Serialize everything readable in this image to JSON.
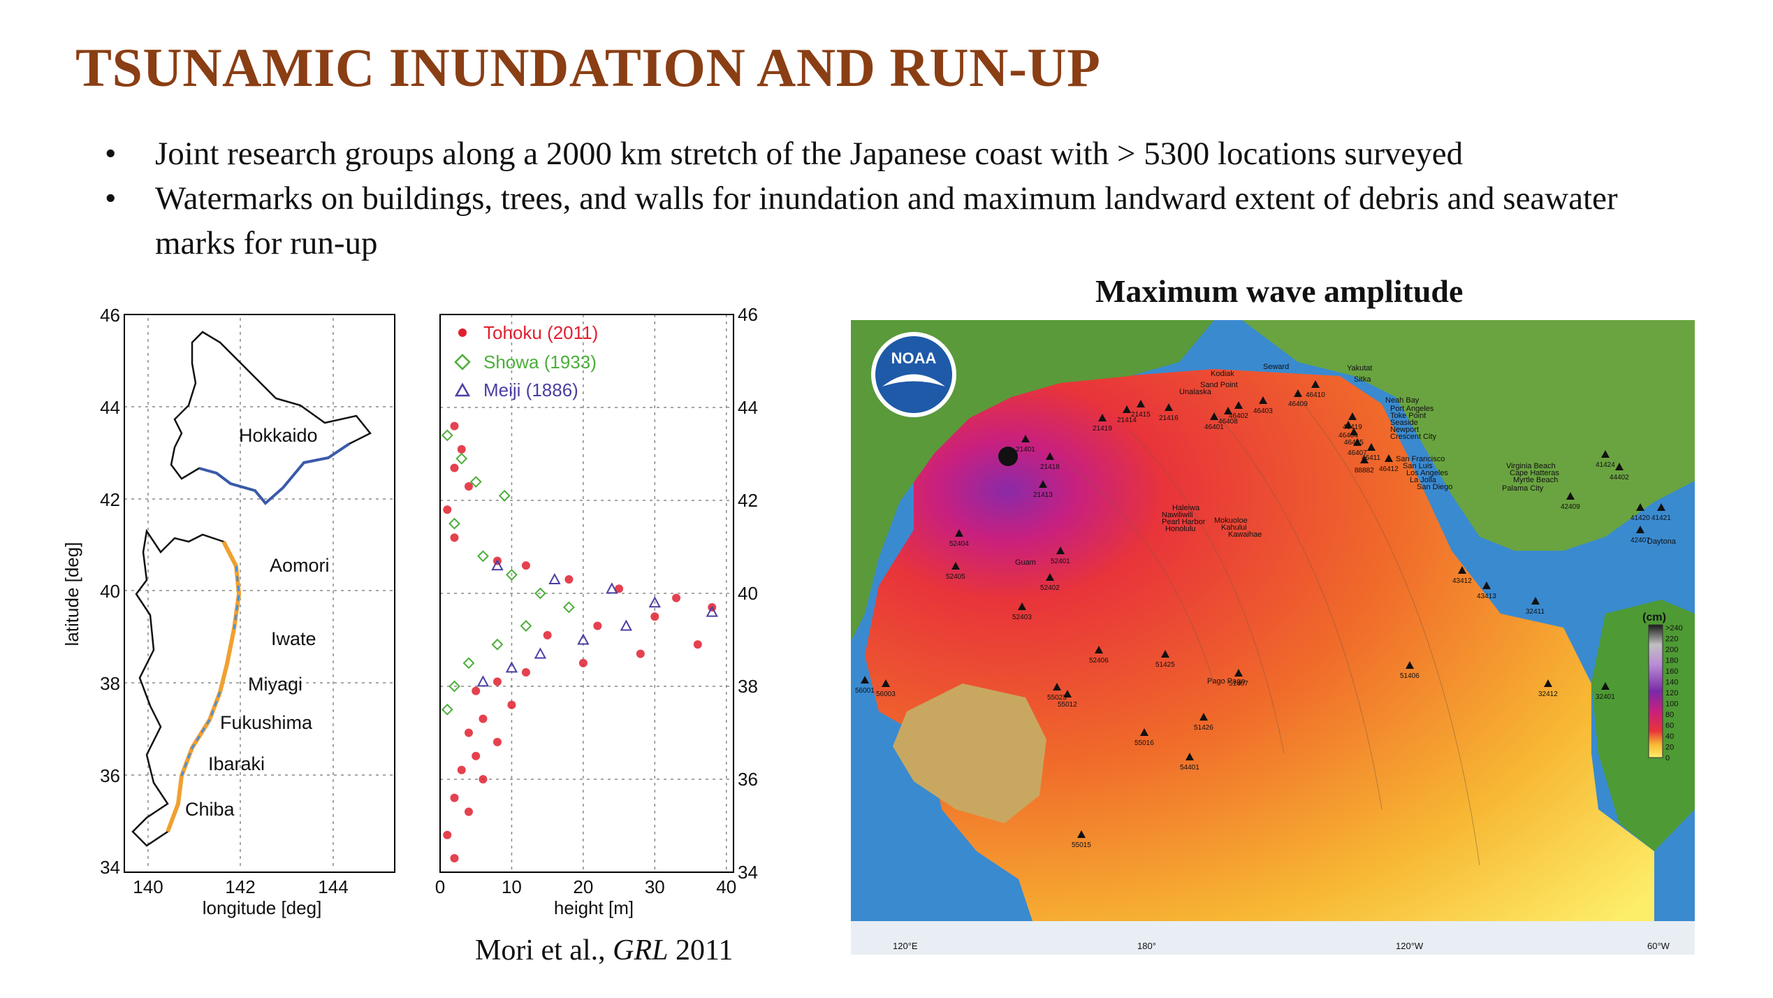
{
  "slide": {
    "title": "TSUNAMIC INUNDATION AND RUN-UP",
    "bullets": [
      "Joint research groups along a 2000 km stretch of the Japanese coast with > 5300 locations surveyed",
      "Watermarks on buildings, trees, and walls for inundation and maximum landward extent of debris and seawater marks for run-up"
    ],
    "citation_pre": "Mori et al., ",
    "citation_journal": "GRL",
    "citation_post": " 2011"
  },
  "left_map": {
    "ylabel": "latitude [deg]",
    "xlabel": "longitude [deg]",
    "x_ticks": [
      "140",
      "142",
      "144"
    ],
    "y_ticks": [
      "46",
      "44",
      "42",
      "40",
      "38",
      "36",
      "34"
    ],
    "region_labels": [
      "Hokkaido",
      "Aomori",
      "Iwate",
      "Miyagi",
      "Fukushima",
      "Ibaraki",
      "Chiba"
    ]
  },
  "chart_data": {
    "type": "scatter",
    "xlabel": "height [m]",
    "x_ticks": [
      "0",
      "10",
      "20",
      "30",
      "40"
    ],
    "y_ticks": [
      "46",
      "44",
      "42",
      "40",
      "38",
      "36",
      "34"
    ],
    "xlim": [
      0,
      41
    ],
    "ylim": [
      34,
      46
    ],
    "grid": true,
    "legend_position": "top-left",
    "series": [
      {
        "name": "Tohoku (2011)",
        "marker": "circle",
        "color": "#e0202f",
        "points": [
          [
            2,
            43.6
          ],
          [
            3,
            43.1
          ],
          [
            2,
            42.7
          ],
          [
            4,
            42.3
          ],
          [
            1,
            41.8
          ],
          [
            2,
            41.2
          ],
          [
            8,
            40.7
          ],
          [
            12,
            40.6
          ],
          [
            18,
            40.3
          ],
          [
            25,
            40.1
          ],
          [
            33,
            39.9
          ],
          [
            38,
            39.7
          ],
          [
            30,
            39.5
          ],
          [
            22,
            39.3
          ],
          [
            15,
            39.1
          ],
          [
            36,
            38.9
          ],
          [
            28,
            38.7
          ],
          [
            20,
            38.5
          ],
          [
            12,
            38.3
          ],
          [
            8,
            38.1
          ],
          [
            5,
            37.9
          ],
          [
            10,
            37.6
          ],
          [
            6,
            37.3
          ],
          [
            4,
            37.0
          ],
          [
            8,
            36.8
          ],
          [
            5,
            36.5
          ],
          [
            3,
            36.2
          ],
          [
            6,
            36.0
          ],
          [
            2,
            35.6
          ],
          [
            4,
            35.3
          ],
          [
            1,
            34.8
          ],
          [
            2,
            34.3
          ]
        ]
      },
      {
        "name": "Showa (1933)",
        "marker": "diamond",
        "color": "#4cae3a",
        "points": [
          [
            1,
            43.4
          ],
          [
            3,
            42.9
          ],
          [
            5,
            42.4
          ],
          [
            9,
            42.1
          ],
          [
            2,
            41.5
          ],
          [
            6,
            40.8
          ],
          [
            10,
            40.4
          ],
          [
            14,
            40.0
          ],
          [
            18,
            39.7
          ],
          [
            12,
            39.3
          ],
          [
            8,
            38.9
          ],
          [
            4,
            38.5
          ],
          [
            2,
            38.0
          ],
          [
            1,
            37.5
          ]
        ]
      },
      {
        "name": "Meiji (1886)",
        "marker": "triangle",
        "color": "#4a3fa3",
        "points": [
          [
            8,
            40.6
          ],
          [
            16,
            40.3
          ],
          [
            24,
            40.1
          ],
          [
            30,
            39.8
          ],
          [
            38,
            39.6
          ],
          [
            26,
            39.3
          ],
          [
            20,
            39.0
          ],
          [
            14,
            38.7
          ],
          [
            10,
            38.4
          ],
          [
            6,
            38.1
          ]
        ]
      }
    ]
  },
  "right_map": {
    "title": "Maximum wave amplitude",
    "logo_text": "NOAA",
    "colorbar_unit": "(cm)",
    "colorbar_labels": [
      ">240",
      "220",
      "200",
      "180",
      "160",
      "140",
      "120",
      "100",
      "80",
      "60",
      "40",
      "20",
      "0"
    ],
    "colorbar_colors": [
      "#1a1a1a",
      "#555555",
      "#8a8a8a",
      "#c0c0c0",
      "#d8d8e8",
      "#b98cd6",
      "#9b4fc4",
      "#7a2aa8",
      "#c8207f",
      "#e8343a",
      "#f07a2a",
      "#f7b733",
      "#fdee6a"
    ],
    "lon_labels": [
      "120°E",
      "180°",
      "120°W",
      "60°W"
    ],
    "places": [
      "Seward",
      "Yakutat",
      "Sitka",
      "Kodiak",
      "Sand Point",
      "Unalaska",
      "Neah Bay",
      "Port Angeles",
      "Toke Point",
      "Seaside",
      "Newport",
      "Crescent City",
      "San Francisco",
      "San Luis",
      "Los Angeles",
      "La Jolla",
      "San Diego",
      "Virginia Beach",
      "Cape Hatteras",
      "Myrtle Beach",
      "Palama City",
      "Haleiwa",
      "Nawiliwili",
      "Pearl Harbor",
      "Honolulu",
      "Mokuoloe",
      "Kahului",
      "Kawaihae",
      "Guam",
      "Pago Pago",
      "Daytona"
    ],
    "buoys": [
      "46410",
      "46409",
      "46403",
      "46402",
      "46408",
      "46401",
      "21416",
      "21415",
      "21414",
      "21419",
      "21401",
      "21418",
      "21413",
      "46419",
      "46404",
      "46405",
      "46407",
      "46411",
      "46412",
      "88882",
      "52404",
      "52401",
      "52402",
      "52405",
      "52403",
      "52406",
      "51407",
      "51425",
      "51406",
      "51426",
      "55023",
      "55012",
      "55016",
      "54401",
      "43412",
      "43413",
      "32411",
      "32412",
      "32401",
      "41424",
      "42409",
      "44402",
      "41420",
      "41421",
      "42407",
      "56001",
      "56003",
      "55015"
    ]
  }
}
